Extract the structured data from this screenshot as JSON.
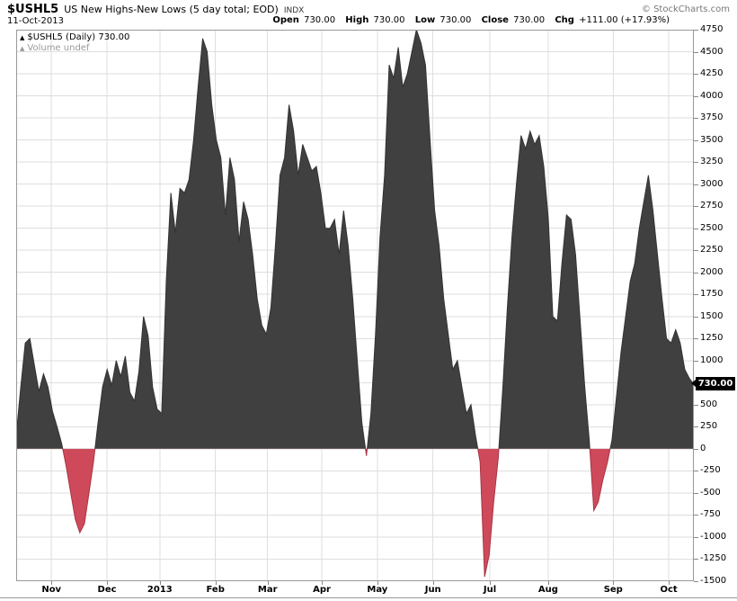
{
  "header": {
    "symbol": "$USHL5",
    "title": "US New Highs-New Lows (5 day total; EOD)",
    "exchange": "INDX",
    "date": "11-Oct-2013",
    "copyright": "© StockCharts.com",
    "quote": {
      "open_label": "Open",
      "open_value": "730.00",
      "high_label": "High",
      "high_value": "730.00",
      "low_label": "Low",
      "low_value": "730.00",
      "close_label": "Close",
      "close_value": "730.00",
      "chg_label": "Chg",
      "chg_value": "+111.00 (+17.93%)"
    }
  },
  "legend": {
    "series_label": "$USHL5 (Daily) 730.00",
    "volume_label": "Volume undef"
  },
  "price_tag": {
    "value": "730.00"
  },
  "colors": {
    "area_positive": "#404040",
    "area_positive_stroke": "#333333",
    "area_negative": "#ce4a5b",
    "area_negative_stroke": "#a83444",
    "grid": "#dedede",
    "border": "#999999",
    "tag_bg": "#000000",
    "tag_text": "#ffffff"
  },
  "chart_data": {
    "type": "area",
    "title": "$USHL5 US New Highs-New Lows (5 day total; EOD) INDX",
    "date": "11-Oct-2013",
    "y_axis": {
      "min": -1500,
      "max": 4750,
      "step": 250
    },
    "x_ticks": [
      {
        "label": "Nov",
        "pos": 0.052
      },
      {
        "label": "Dec",
        "pos": 0.134
      },
      {
        "label": "2013",
        "pos": 0.212
      },
      {
        "label": "Feb",
        "pos": 0.294
      },
      {
        "label": "Mar",
        "pos": 0.371
      },
      {
        "label": "Apr",
        "pos": 0.451
      },
      {
        "label": "May",
        "pos": 0.533
      },
      {
        "label": "Jun",
        "pos": 0.615
      },
      {
        "label": "Jul",
        "pos": 0.699
      },
      {
        "label": "Aug",
        "pos": 0.785
      },
      {
        "label": "Sep",
        "pos": 0.881
      },
      {
        "label": "Oct",
        "pos": 0.963
      }
    ],
    "values": [
      150,
      700,
      1200,
      1250,
      950,
      650,
      850,
      700,
      420,
      250,
      60,
      -200,
      -500,
      -800,
      -950,
      -850,
      -500,
      -150,
      300,
      700,
      900,
      720,
      1000,
      820,
      1050,
      640,
      540,
      880,
      1500,
      1280,
      700,
      450,
      400,
      1900,
      2900,
      2450,
      2950,
      2900,
      3050,
      3500,
      4100,
      4650,
      4500,
      3900,
      3500,
      3300,
      2650,
      3300,
      3050,
      2350,
      2800,
      2600,
      2200,
      1700,
      1400,
      1300,
      1600,
      2300,
      3100,
      3300,
      3900,
      3600,
      3100,
      3450,
      3300,
      3150,
      3200,
      2900,
      2500,
      2500,
      2600,
      2200,
      2700,
      2300,
      1700,
      1000,
      300,
      -80,
      400,
      1300,
      2400,
      3100,
      4350,
      4200,
      4550,
      4100,
      4250,
      4500,
      4750,
      4600,
      4350,
      3500,
      2700,
      2300,
      1700,
      1300,
      900,
      1000,
      700,
      400,
      500,
      150,
      -150,
      -1450,
      -1200,
      -600,
      -100,
      700,
      1600,
      2400,
      3000,
      3550,
      3400,
      3600,
      3450,
      3550,
      3200,
      2600,
      1500,
      1450,
      2100,
      2650,
      2600,
      2200,
      1450,
      700,
      100,
      -700,
      -600,
      -350,
      -150,
      100,
      600,
      1100,
      1500,
      1900,
      2100,
      2500,
      2800,
      3100,
      2700,
      2200,
      1700,
      1250,
      1200,
      1350,
      1200,
      900,
      800,
      730
    ],
    "last_value": 730,
    "ohlc": {
      "open": 730,
      "high": 730,
      "low": 730,
      "close": 730,
      "change": 111,
      "change_pct": 17.93
    }
  }
}
